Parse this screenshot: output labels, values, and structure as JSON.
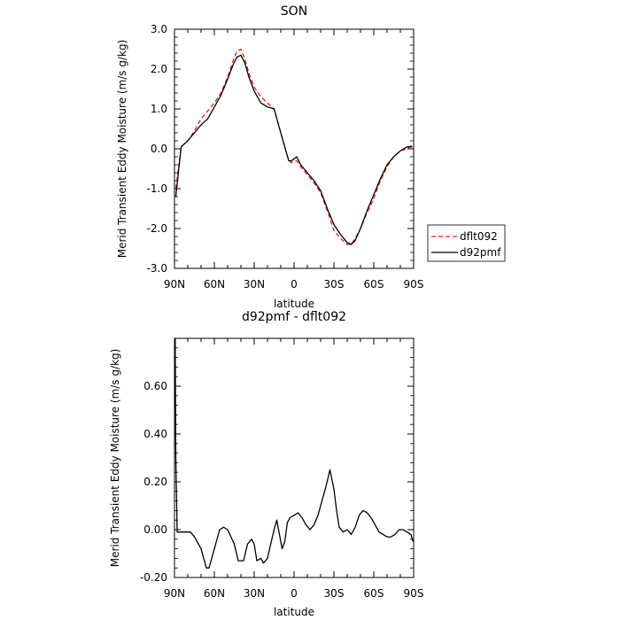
{
  "chart_data": [
    {
      "type": "line",
      "title": "SON",
      "xlabel": "latitude",
      "ylabel": "Merid Transient Eddy Moisture (m/s g/kg)",
      "xlim": [
        90,
        -90
      ],
      "ylim": [
        -3.0,
        3.0
      ],
      "xticks": [
        90,
        60,
        30,
        0,
        -30,
        -60,
        -90
      ],
      "xtick_labels": [
        "90N",
        "60N",
        "30N",
        "0",
        "30S",
        "60S",
        "90S"
      ],
      "yticks": [
        -3.0,
        -2.0,
        -1.0,
        0.0,
        1.0,
        2.0,
        3.0
      ],
      "ytick_labels": [
        "-3.0",
        "-2.0",
        "-1.0",
        "0.0",
        "1.0",
        "2.0",
        "3.0"
      ],
      "legend": "right",
      "series": [
        {
          "name": "dflt092",
          "style": "dashed",
          "color": "#e02020",
          "x": [
            89,
            85,
            80,
            75,
            70,
            65,
            60,
            55,
            50,
            46,
            43,
            40,
            37,
            34,
            30,
            25,
            20,
            15,
            10,
            7,
            4,
            2,
            0,
            -2,
            -5,
            -10,
            -15,
            -20,
            -25,
            -30,
            -35,
            -40,
            -43,
            -46,
            -50,
            -55,
            -60,
            -65,
            -70,
            -75,
            -80,
            -85,
            -89
          ],
          "y": [
            -1.0,
            0.05,
            0.2,
            0.45,
            0.75,
            0.95,
            1.15,
            1.4,
            1.8,
            2.2,
            2.45,
            2.5,
            2.25,
            1.9,
            1.55,
            1.3,
            1.15,
            1.0,
            0.4,
            0.05,
            -0.3,
            -0.35,
            -0.3,
            -0.3,
            -0.45,
            -0.65,
            -0.85,
            -1.1,
            -1.55,
            -2.05,
            -2.25,
            -2.4,
            -2.4,
            -2.25,
            -2.0,
            -1.6,
            -1.25,
            -0.8,
            -0.45,
            -0.2,
            -0.05,
            0.0,
            0.1
          ]
        },
        {
          "name": "d92pmf",
          "style": "solid",
          "color": "#000000",
          "x": [
            89,
            85,
            80,
            75,
            70,
            65,
            60,
            55,
            50,
            46,
            43,
            40,
            37,
            34,
            30,
            25,
            20,
            15,
            10,
            7,
            4,
            2,
            0,
            -2,
            -5,
            -10,
            -15,
            -20,
            -25,
            -30,
            -35,
            -40,
            -43,
            -46,
            -50,
            -55,
            -60,
            -65,
            -70,
            -75,
            -80,
            -85,
            -89
          ],
          "y": [
            -1.2,
            0.05,
            0.2,
            0.4,
            0.6,
            0.75,
            1.05,
            1.35,
            1.75,
            2.1,
            2.3,
            2.35,
            2.15,
            1.8,
            1.45,
            1.15,
            1.05,
            1.0,
            0.4,
            0.05,
            -0.3,
            -0.3,
            -0.25,
            -0.2,
            -0.4,
            -0.6,
            -0.8,
            -1.05,
            -1.5,
            -1.9,
            -2.15,
            -2.35,
            -2.4,
            -2.3,
            -2.0,
            -1.55,
            -1.15,
            -0.75,
            -0.4,
            -0.2,
            -0.05,
            0.05,
            0.05
          ]
        }
      ]
    },
    {
      "type": "line",
      "title": "d92pmf - dflt092",
      "xlabel": "latitude",
      "ylabel": "Merid Transient Eddy Moisture (m/s g/kg)",
      "xlim": [
        90,
        -90
      ],
      "ylim": [
        -0.2,
        0.8
      ],
      "xticks": [
        90,
        60,
        30,
        0,
        -30,
        -60,
        -90
      ],
      "xtick_labels": [
        "90N",
        "60N",
        "30N",
        "0",
        "30S",
        "60S",
        "90S"
      ],
      "yticks": [
        -0.2,
        0.0,
        0.2,
        0.4,
        0.6
      ],
      "ytick_labels": [
        "-0.20",
        "0.00",
        "0.20",
        "0.40",
        "0.60"
      ],
      "series": [
        {
          "style": "solid",
          "color": "#000000",
          "x": [
            89.5,
            89,
            88,
            85,
            82,
            78,
            75,
            70,
            66,
            64,
            60,
            56,
            53,
            50,
            45,
            42,
            38,
            35,
            32,
            30,
            28,
            25,
            23,
            20,
            18,
            15,
            13,
            11,
            9,
            7,
            5,
            3,
            0,
            -3,
            -6,
            -9,
            -12,
            -15,
            -18,
            -21,
            -24,
            -27,
            -30,
            -32,
            -34,
            -37,
            -40,
            -43,
            -46,
            -49,
            -52,
            -55,
            -58,
            -61,
            -64,
            -67,
            -70,
            -73,
            -76,
            -79,
            -82,
            -85,
            -88,
            -89.5
          ],
          "y": [
            0.8,
            0.3,
            -0.01,
            -0.01,
            -0.01,
            -0.01,
            -0.03,
            -0.08,
            -0.16,
            -0.16,
            -0.08,
            0.0,
            0.01,
            0.0,
            -0.06,
            -0.13,
            -0.13,
            -0.06,
            -0.04,
            -0.06,
            -0.13,
            -0.12,
            -0.14,
            -0.12,
            -0.07,
            0.0,
            0.04,
            -0.02,
            -0.08,
            -0.05,
            0.03,
            0.05,
            0.06,
            0.07,
            0.05,
            0.02,
            0.0,
            0.02,
            0.06,
            0.12,
            0.18,
            0.25,
            0.17,
            0.08,
            0.01,
            -0.01,
            0.0,
            -0.02,
            0.01,
            0.06,
            0.08,
            0.07,
            0.05,
            0.02,
            -0.01,
            -0.02,
            -0.03,
            -0.03,
            -0.02,
            0.0,
            0.0,
            -0.01,
            -0.02,
            -0.05
          ]
        }
      ]
    }
  ]
}
